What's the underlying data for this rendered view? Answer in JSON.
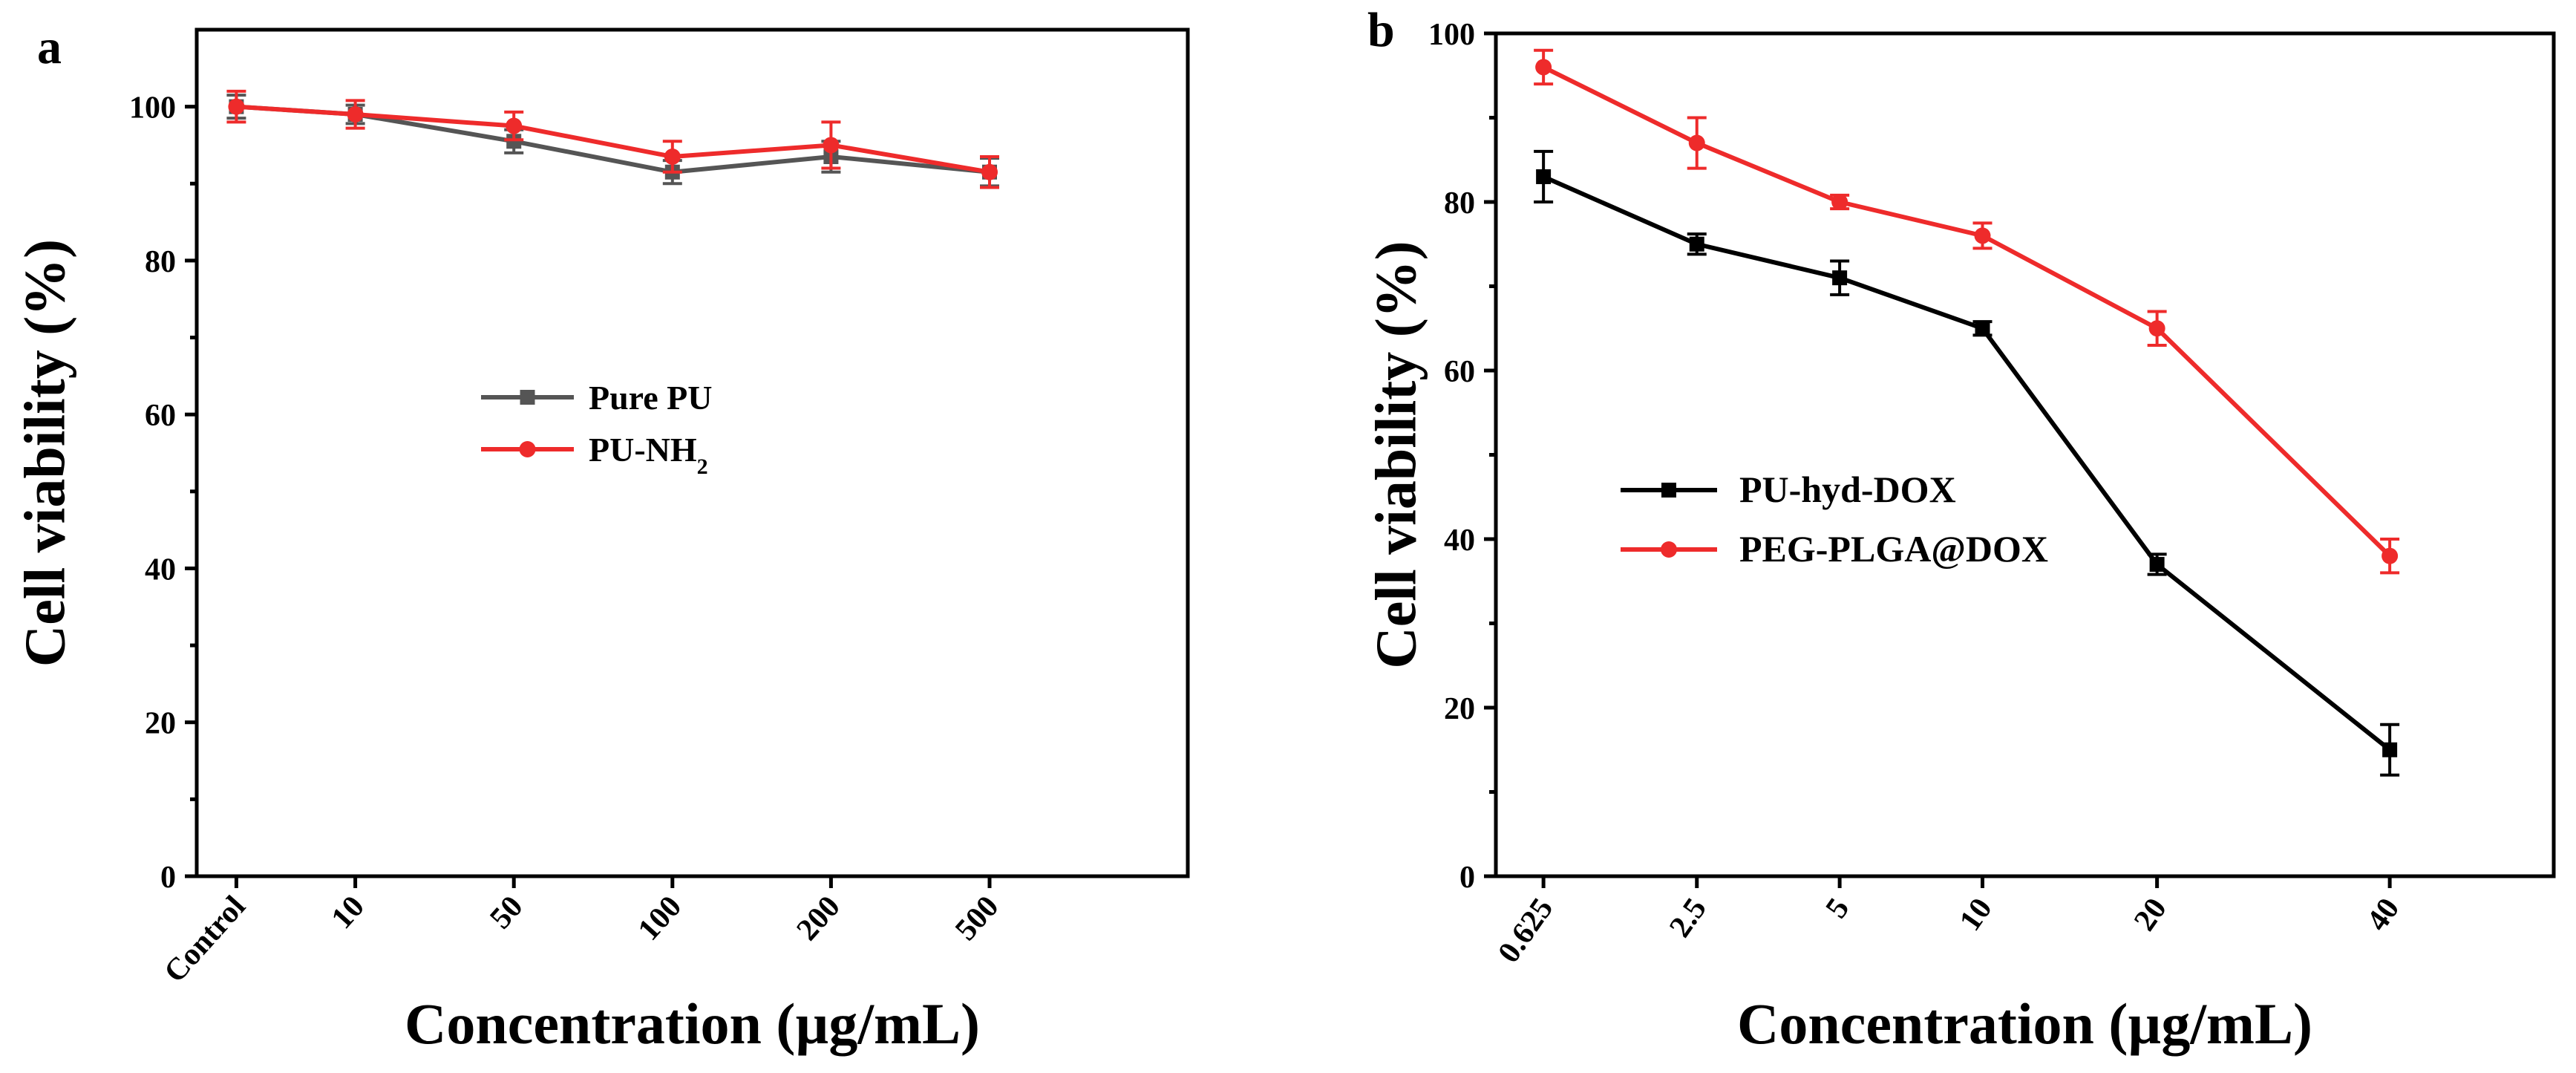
{
  "colors": {
    "black": "#000000",
    "gray_series": "#555555",
    "red_series": "#ee2b2b"
  },
  "chart_data": [
    {
      "type": "line",
      "panel_label": "a",
      "title": "",
      "xlabel": "Concentration (µg/mL)",
      "ylabel": "Cell viability (%)",
      "categories": [
        "Control",
        "10",
        "50",
        "100",
        "200",
        "500"
      ],
      "ylim": [
        0,
        110
      ],
      "yticks": [
        0,
        20,
        40,
        60,
        80,
        100
      ],
      "ytick_labels": [
        "0",
        "20",
        "40",
        "60",
        "80",
        "100"
      ],
      "grid": false,
      "legend_position": "center-left",
      "series": [
        {
          "name": "Pure PU",
          "name_main": "Pure PU",
          "name_sub": "",
          "marker": "square",
          "color": "#555555",
          "values": [
            100,
            99,
            95.5,
            91.5,
            93.5,
            91.5
          ],
          "errors": [
            1.5,
            1.2,
            1.5,
            1.5,
            2.0,
            1.8
          ]
        },
        {
          "name": "PU-NH2",
          "name_main": "PU-NH",
          "name_sub": "2",
          "marker": "circle",
          "color": "#ee2b2b",
          "values": [
            100,
            99,
            97.5,
            93.5,
            95,
            91.5
          ],
          "errors": [
            2.0,
            1.8,
            1.8,
            2.0,
            3.0,
            2.0
          ]
        }
      ]
    },
    {
      "type": "line",
      "panel_label": "b",
      "title": "",
      "xlabel": "Concentration (µg/mL)",
      "ylabel": "Cell viability (%)",
      "categories": [
        "0.625",
        "2.5",
        "5",
        "10",
        "20",
        "40"
      ],
      "ylim": [
        0,
        100
      ],
      "yticks": [
        0,
        20,
        40,
        60,
        80,
        100
      ],
      "ytick_labels": [
        "0",
        "20",
        "40",
        "60",
        "80",
        "100"
      ],
      "grid": false,
      "legend_position": "center-left",
      "series": [
        {
          "name": "PU-hyd-DOX",
          "name_main": "PU-hyd-DOX",
          "name_sub": "",
          "marker": "square",
          "color": "#000000",
          "values": [
            83,
            75,
            71,
            65,
            37,
            15
          ],
          "errors": [
            3.0,
            1.2,
            2.0,
            0.8,
            1.2,
            3.0
          ]
        },
        {
          "name": "PEG-PLGA@DOX",
          "name_main": "PEG-PLGA@DOX",
          "name_sub": "",
          "marker": "circle",
          "color": "#ee2b2b",
          "values": [
            96,
            87,
            80,
            76,
            65,
            38
          ],
          "errors": [
            2.0,
            3.0,
            0.8,
            1.5,
            2.0,
            2.0
          ]
        }
      ]
    }
  ]
}
